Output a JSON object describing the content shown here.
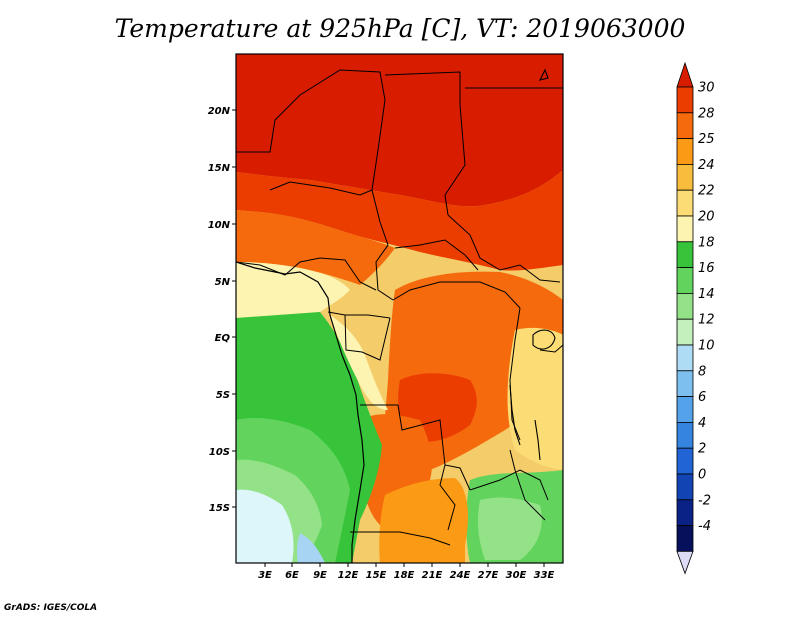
{
  "title": "Temperature at 925hPa [C], VT: 2019063000",
  "footer": "GrADS: IGES/COLA",
  "map": {
    "lat_ticks": [
      "20N",
      "15N",
      "10N",
      "5N",
      "EQ",
      "5S",
      "10S",
      "15S"
    ],
    "lon_ticks": [
      "3E",
      "6E",
      "9E",
      "12E",
      "15E",
      "18E",
      "21E",
      "24E",
      "27E",
      "30E",
      "33E"
    ]
  },
  "colorbar": {
    "labels": [
      "30",
      "28",
      "25",
      "24",
      "22",
      "20",
      "18",
      "16",
      "14",
      "12",
      "10",
      "8",
      "6",
      "4",
      "2",
      "0",
      "-2",
      "-4"
    ],
    "colors": [
      "#d81c00",
      "#eb3d00",
      "#f56a0c",
      "#fb9a14",
      "#f9bd3e",
      "#fcdc74",
      "#fdf4b2",
      "#37c43a",
      "#62d45e",
      "#93e287",
      "#c3f0bc",
      "#aedcf5",
      "#7dc0f0",
      "#54a2ea",
      "#3584e0",
      "#2064d6",
      "#1244b4",
      "#0a2286",
      "#07105a",
      "#dcdcf6"
    ]
  }
}
